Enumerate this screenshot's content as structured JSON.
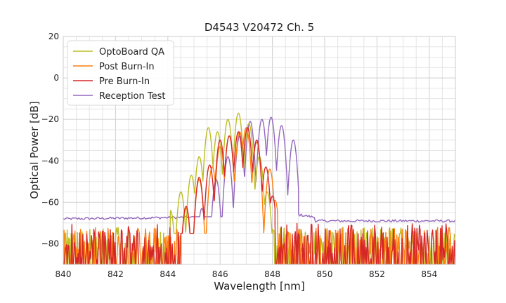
{
  "chart_data": {
    "type": "line",
    "title": "D4543 V20472 Ch. 5",
    "xlabel": "Wavelength [nm]",
    "ylabel": "Optical Power [dB]",
    "xlim": [
      840,
      855
    ],
    "ylim": [
      -90,
      20
    ],
    "xticks": [
      840,
      842,
      844,
      846,
      848,
      850,
      852,
      854
    ],
    "yticks": [
      20,
      0,
      -20,
      -40,
      -60,
      -80
    ],
    "xtick_labels": [
      "840",
      "842",
      "844",
      "846",
      "848",
      "850",
      "852",
      "854"
    ],
    "ytick_labels": [
      "20",
      "0",
      "−20",
      "−40",
      "−60",
      "−80"
    ],
    "grid": true,
    "legend_position": "top-left",
    "noise_floor": -90,
    "series": [
      {
        "name": "OptoBoard QA",
        "color": "#bcbd22",
        "floor_band": [
          -85,
          -72
        ],
        "floor_range": [
          840,
          844.1
        ],
        "peaks": [
          [
            843.8,
            -69
          ],
          [
            844.1,
            -64
          ],
          [
            844.5,
            -55
          ],
          [
            844.9,
            -47
          ],
          [
            845.2,
            -38
          ],
          [
            845.55,
            -24
          ],
          [
            845.9,
            -26
          ],
          [
            846.3,
            -20
          ],
          [
            846.7,
            -17
          ],
          [
            847.1,
            -22
          ],
          [
            847.5,
            -38
          ],
          [
            847.8,
            -55
          ]
        ],
        "edge": [
          848.0,
          -73
        ]
      },
      {
        "name": "Post Burn-In",
        "color": "#ff7f0e",
        "floor_band": [
          -85,
          -72
        ],
        "floor_range": [
          840,
          844.5
        ],
        "peaks": [
          [
            844.7,
            -63
          ],
          [
            845.2,
            -49
          ],
          [
            845.7,
            -43
          ],
          [
            846.0,
            -33
          ],
          [
            846.35,
            -28
          ],
          [
            846.75,
            -26
          ],
          [
            847.0,
            -24
          ],
          [
            847.4,
            -31
          ],
          [
            847.9,
            -44
          ],
          [
            848.1,
            -59
          ]
        ],
        "edge": [
          848.2,
          -72
        ]
      },
      {
        "name": "Pre Burn-In",
        "color": "#d62728",
        "floor_band": [
          -88,
          -70
        ],
        "floor_range": [
          840,
          844.5
        ],
        "peaks": [
          [
            844.7,
            -62
          ],
          [
            845.2,
            -48
          ],
          [
            845.6,
            -42
          ],
          [
            846.0,
            -30
          ],
          [
            846.35,
            -28
          ],
          [
            846.7,
            -26
          ],
          [
            847.05,
            -24
          ],
          [
            847.4,
            -30
          ],
          [
            847.75,
            -43
          ],
          [
            848.0,
            -57
          ]
        ],
        "edge": [
          848.1,
          -71
        ]
      },
      {
        "name": "Reception Test",
        "color": "#9467bd",
        "floor_level": -68,
        "peaks": [
          [
            845.3,
            -63
          ],
          [
            845.85,
            -49
          ],
          [
            846.3,
            -38
          ],
          [
            846.75,
            -28
          ],
          [
            847.15,
            -21
          ],
          [
            847.6,
            -20
          ],
          [
            847.95,
            -19
          ],
          [
            848.35,
            -23
          ],
          [
            848.8,
            -30
          ]
        ],
        "edge_start": 849.0,
        "floor_right": -69
      }
    ]
  }
}
